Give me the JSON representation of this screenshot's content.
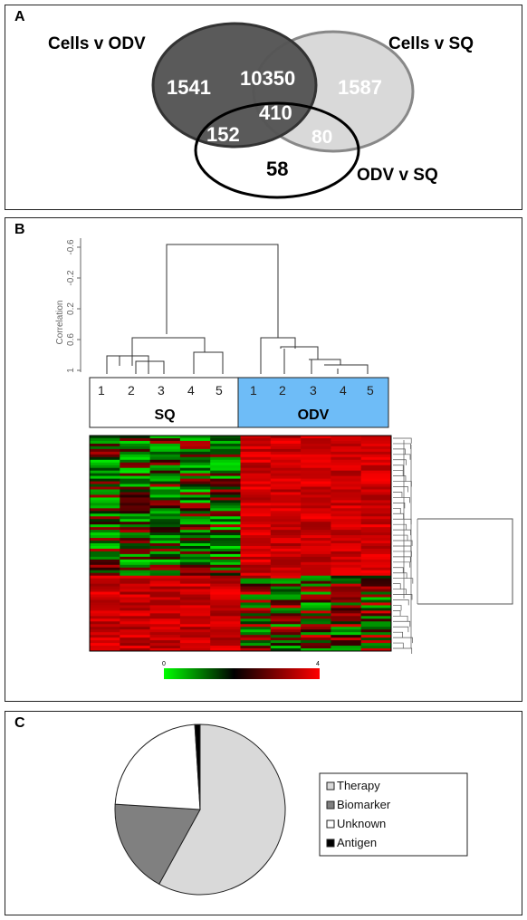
{
  "panels": {
    "a": "A",
    "b": "B",
    "c": "C"
  },
  "venn": {
    "sets": [
      {
        "name": "Cells v ODV",
        "color": "#555555"
      },
      {
        "name": "Cells v SQ",
        "color": "#d9d9d9"
      },
      {
        "name": "ODV v SQ",
        "color": "#ffffff"
      }
    ],
    "regions": [
      {
        "id": "cells-odv-only",
        "value": "1541"
      },
      {
        "id": "cells-odv-and-cells-sq",
        "value": "10350"
      },
      {
        "id": "cells-sq-only",
        "value": "1587"
      },
      {
        "id": "all-three",
        "value": "410"
      },
      {
        "id": "cells-odv-and-odv-sq",
        "value": "152"
      },
      {
        "id": "cells-sq-and-odv-sq",
        "value": "80"
      },
      {
        "id": "odv-sq-only",
        "value": "58"
      }
    ]
  },
  "dendrogram": {
    "ylabel": "Correlation",
    "yticks": [
      "-0.6",
      "-0.2",
      "0.2",
      "0.6",
      "1"
    ],
    "groups": [
      {
        "name": "SQ",
        "samples": [
          "1",
          "2",
          "3",
          "4",
          "5"
        ],
        "color": "#ffffff"
      },
      {
        "name": "ODV",
        "samples": [
          "1",
          "2",
          "3",
          "4",
          "5"
        ],
        "color": "#6ebcf7"
      }
    ]
  },
  "heatmap": {
    "scale_min": "0",
    "scale_max": "4",
    "scale_colors": [
      "#00ff00",
      "#000000",
      "#ff0000"
    ]
  },
  "chart_data": {
    "type": "pie",
    "labels": [
      "Therapy",
      "Biomarker",
      "Unknown",
      "Antigen"
    ],
    "values": [
      58,
      18,
      23,
      1
    ],
    "colors": [
      "#d9d9d9",
      "#808080",
      "#ffffff",
      "#000000"
    ],
    "legend_position": "right"
  }
}
